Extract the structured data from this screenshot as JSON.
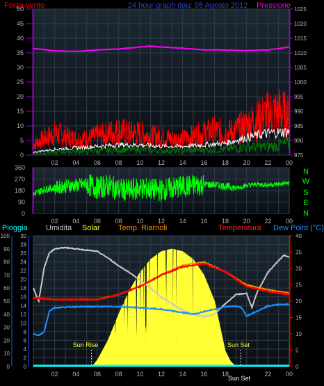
{
  "colors": {
    "background": "#000000",
    "plot_bg_top": "#1d2833",
    "plot_bg_bottom": "#0a0f14",
    "grid": "#2d3d4a",
    "tick_text": "#b4b4b4",
    "wind_gust": "#ff0000",
    "wind_avg": "#ffffff",
    "wind_green": "#008000",
    "pressure": "#ff00ff",
    "direction": "#00ff00",
    "humidity": "#c8c8c8",
    "solar": "#ffff33",
    "temp_indoor": "#ff8c00",
    "temperature": "#ff0000",
    "dew_point": "#1e90ff",
    "rain": "#00ffff"
  },
  "header": {
    "wind_label": "Forza vento",
    "title": "24 hour graph dau:  05 Agosto 2012",
    "pressure_label": "Pressione"
  },
  "legend": {
    "rain": "Pioggia",
    "humidity": "Umidita",
    "solar": "Solar",
    "indoor": "Temp. Riarnoli",
    "temperature": "Temperatura",
    "dew_point": "Dew Point (°C)"
  },
  "compass": [
    "N",
    "W",
    "S",
    "E",
    "N"
  ],
  "annotations": {
    "sunrise": "Sun Rise",
    "sunset": "Sun Set"
  },
  "chart_data": [
    {
      "type": "line",
      "title": "24 hour graph dau:  05 Agosto 2012",
      "x_ticks": [
        "02",
        "04",
        "06",
        "08",
        "10",
        "12",
        "14",
        "16",
        "18",
        "20",
        "22",
        "00"
      ],
      "x_range_hours": [
        0,
        24
      ],
      "y_left": {
        "label": "Forza vento",
        "range": [
          0,
          50
        ],
        "ticks": [
          0,
          5,
          10,
          15,
          20,
          25,
          30,
          35,
          40,
          45,
          50
        ]
      },
      "y_right": {
        "label": "Pressione",
        "range": [
          975,
          1025
        ],
        "ticks": [
          975,
          980,
          985,
          990,
          995,
          1000,
          1005,
          1010,
          1015,
          1020,
          1025
        ]
      },
      "series": [
        {
          "name": "Pressione",
          "axis": "right",
          "x": [
            0,
            2,
            4,
            6,
            8,
            10,
            11,
            12,
            14,
            16,
            18,
            20,
            22,
            24
          ],
          "values": [
            1011.5,
            1010.7,
            1010.5,
            1011.0,
            1011.3,
            1012.0,
            1012.3,
            1012.0,
            1011.6,
            1011.0,
            1011.0,
            1010.8,
            1011.0,
            1012.0
          ]
        },
        {
          "name": "gust",
          "axis": "left",
          "x": [
            0,
            1,
            2,
            3,
            4,
            5,
            6,
            7,
            8,
            9,
            10,
            11,
            12,
            13,
            14,
            15,
            16,
            17,
            18,
            19,
            20,
            21,
            22,
            23,
            24
          ],
          "values": [
            4,
            6,
            8,
            7,
            6,
            6,
            7,
            8,
            9,
            8,
            8,
            7,
            7,
            6,
            6,
            7,
            8,
            9,
            8,
            9,
            11,
            13,
            15,
            16,
            14
          ]
        },
        {
          "name": "average",
          "axis": "left",
          "x": [
            0,
            2,
            4,
            6,
            8,
            10,
            12,
            14,
            16,
            18,
            20,
            22,
            24
          ],
          "values": [
            1,
            2,
            2.5,
            3,
            3.5,
            3.5,
            3,
            3,
            3.5,
            4,
            6,
            7.5,
            8
          ]
        },
        {
          "name": "low",
          "axis": "left",
          "x": [
            0,
            2,
            4,
            6,
            8,
            10,
            12,
            14,
            16,
            18,
            20,
            22,
            24
          ],
          "values": [
            0.5,
            1,
            1.5,
            1.5,
            2,
            2,
            1.5,
            1.5,
            2,
            2,
            3,
            3,
            4
          ]
        }
      ]
    },
    {
      "type": "line",
      "x_ticks": [
        "02",
        "04",
        "06",
        "08",
        "10",
        "12",
        "14",
        "16",
        "18",
        "20",
        "22",
        "00"
      ],
      "y_left": {
        "range": [
          0,
          360
        ],
        "ticks": [
          0,
          90,
          180,
          270,
          360
        ]
      },
      "y_right_labels": [
        "N",
        "W",
        "S",
        "E",
        "N"
      ],
      "series": [
        {
          "name": "direction",
          "x": [
            0,
            1,
            2,
            3,
            4,
            5,
            6,
            7,
            8,
            9,
            10,
            11,
            12,
            13,
            14,
            15,
            16,
            17,
            18,
            19,
            20,
            21,
            22,
            23,
            24
          ],
          "values": [
            150,
            190,
            200,
            215,
            220,
            230,
            200,
            220,
            190,
            180,
            200,
            190,
            180,
            200,
            210,
            220,
            230,
            225,
            215,
            200,
            220,
            230,
            225,
            230,
            240
          ]
        }
      ]
    },
    {
      "type": "line",
      "x_ticks": [
        "02",
        "04",
        "06",
        "08",
        "10",
        "12",
        "14",
        "16",
        "18",
        "20",
        "22",
        "00"
      ],
      "y_left_outer": {
        "label": "Pioggia",
        "range": [
          0,
          100
        ],
        "ticks": [
          0,
          10,
          20,
          30,
          40,
          50,
          60,
          70,
          80,
          90,
          100
        ]
      },
      "y_left_inner": {
        "label": "Umidita",
        "range": [
          0,
          30
        ],
        "ticks": [
          0,
          2,
          4,
          6,
          8,
          10,
          12,
          14,
          16,
          18,
          20,
          22,
          24,
          26,
          28,
          30
        ]
      },
      "y_right": {
        "label": "Dew Point (°C)",
        "range": [
          0,
          40
        ],
        "ticks": [
          0,
          5,
          10,
          15,
          20,
          25,
          30,
          35,
          40
        ]
      },
      "series": [
        {
          "name": "Umidita",
          "axis": "left_outer",
          "x": [
            0,
            0.5,
            1,
            1.5,
            2,
            3,
            4,
            5,
            6,
            7,
            8,
            9,
            10,
            11,
            12,
            13,
            14,
            15,
            16,
            17,
            18,
            19,
            20,
            20.5,
            21,
            22,
            23,
            23.5,
            24
          ],
          "values": [
            60,
            50,
            75,
            87,
            90,
            91,
            90,
            89,
            88,
            83,
            77,
            72,
            66,
            60,
            53,
            48,
            43,
            40,
            38,
            40,
            48,
            55,
            56,
            45,
            57,
            72,
            81,
            85,
            84
          ]
        },
        {
          "name": "Solar",
          "axis": "none",
          "x": [
            0,
            5.5,
            6,
            7,
            8,
            9,
            10,
            11,
            12,
            13,
            14,
            15,
            16,
            17,
            18,
            18.5,
            19,
            24
          ],
          "values": [
            0,
            0,
            5,
            20,
            40,
            58,
            72,
            82,
            88,
            90,
            88,
            82,
            70,
            50,
            12,
            4,
            0,
            0
          ]
        },
        {
          "name": "Temp. Riarnoli",
          "axis": "right",
          "x": [
            0,
            2,
            4,
            6,
            8,
            10,
            12,
            14,
            16,
            18,
            20,
            22,
            24
          ],
          "values": [
            21,
            20.5,
            20.5,
            20.5,
            22,
            24.5,
            28,
            31,
            32,
            29,
            25,
            23.5,
            22.5
          ]
        },
        {
          "name": "Temperatura",
          "axis": "right",
          "x": [
            0,
            2,
            4,
            6,
            8,
            10,
            12,
            14,
            16,
            18,
            20,
            22,
            24
          ],
          "values": [
            21,
            20.5,
            20.5,
            20.5,
            22,
            24.5,
            28,
            30.5,
            31.5,
            29,
            24.5,
            23,
            22
          ]
        },
        {
          "name": "Dew Point (°C)",
          "axis": "right",
          "x": [
            0,
            0.5,
            1,
            1.5,
            2,
            4,
            6,
            8,
            10,
            12,
            14,
            15,
            16,
            17,
            18,
            19,
            19.5,
            20,
            21,
            22,
            23,
            24
          ],
          "values": [
            10,
            9.5,
            10.5,
            17,
            18,
            18.3,
            18.3,
            18.3,
            18,
            17.5,
            16.5,
            16,
            16.8,
            17.5,
            18.3,
            18.5,
            18,
            15.5,
            17,
            18.5,
            19,
            19
          ]
        },
        {
          "name": "Pioggia",
          "axis": "left_outer",
          "x": [
            0,
            24
          ],
          "values": [
            0,
            0
          ]
        }
      ]
    }
  ]
}
